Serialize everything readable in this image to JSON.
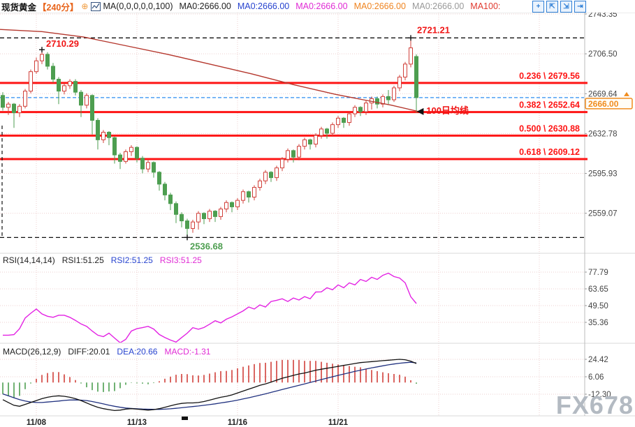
{
  "toolbar": {
    "symbol": "现货黄金",
    "period": "【240分】",
    "ma_settings": "MA(0,0,0,0,0,100)",
    "ma_values": [
      {
        "label": "MA0:2666.00",
        "color": "#222222"
      },
      {
        "label": "MA0:2666.00",
        "color": "#2743cf"
      },
      {
        "label": "MA0:2666.00",
        "color": "#e02ad4"
      },
      {
        "label": "MA0:2666.00",
        "color": "#ef8420"
      },
      {
        "label": "MA0:2666.00",
        "color": "#999999"
      },
      {
        "label": "MA100:",
        "color": "#e03a2f"
      }
    ],
    "icons": [
      {
        "name": "crosshair-move-icon",
        "glyph": "+"
      },
      {
        "name": "zoom-area-icon",
        "glyph": "⇱"
      },
      {
        "name": "zoom-reset-icon",
        "glyph": "⇲"
      },
      {
        "name": "pan-right-icon",
        "glyph": "⇥"
      }
    ]
  },
  "rsi_header": {
    "title": "RSI(14,14,14)",
    "rsi1": "RSI1:51.25",
    "rsi2": "RSI2:51.25",
    "rsi3": "RSI3:51.25"
  },
  "macd_header": {
    "title": "MACD(26,12,9)",
    "diff": "DIFF:20.01",
    "dea": "DEA:20.66",
    "macd": "MACD:-1.31"
  },
  "watermark": "FX678",
  "current_price": {
    "value": "2666.00",
    "direction": "up"
  },
  "colors": {
    "up": "#d1403a",
    "down": "#4d9e50",
    "fib": "#fe1515",
    "ma100": "#b5382e",
    "rsi_line": "#e322e3",
    "diff_line": "#111111",
    "dea_line": "#20317f",
    "current_line": "#2e8ef0",
    "badge": "#f08c1e",
    "grid": "#eecfcf",
    "label_red": "#f01515",
    "label_green": "#4d9e50"
  },
  "chart_data": {
    "type": "candlestick",
    "symbol": "现货黄金",
    "interval": "240分",
    "price_axis_ticks": [
      2743.35,
      2706.5,
      2669.64,
      2632.78,
      2595.93,
      2559.07
    ],
    "x_labels": [
      {
        "label": "11/08",
        "bar": 6
      },
      {
        "label": "11/13",
        "bar": 24
      },
      {
        "label": "11/16",
        "bar": 42
      },
      {
        "label": "11/21",
        "bar": 60
      }
    ],
    "extra_grid_bars": [
      78,
      96
    ],
    "fib_levels": [
      {
        "ratio": "0.236",
        "price": 2679.56
      },
      {
        "ratio": "0.382",
        "price": 2652.64
      },
      {
        "ratio": "0.500",
        "price": 2630.88
      },
      {
        "ratio": "0.618",
        "price": 2609.12
      }
    ],
    "annotations": {
      "high1": {
        "text": "2710.29",
        "bar": 7,
        "price": 2710.29
      },
      "high2": {
        "text": "2721.21",
        "bar": 73,
        "price": 2721.21
      },
      "low": {
        "text": "2536.68",
        "bar": 33,
        "price": 2536.68
      },
      "ma_line_label": "100日均线",
      "current_price_line": 2666.0
    },
    "candles": [
      [
        2668,
        2671,
        2654,
        2657
      ],
      [
        2657,
        2662,
        2650,
        2660
      ],
      [
        2660,
        2661,
        2638,
        2652
      ],
      [
        2652,
        2660,
        2648,
        2658
      ],
      [
        2658,
        2674,
        2656,
        2672
      ],
      [
        2672,
        2692,
        2670,
        2690
      ],
      [
        2690,
        2703,
        2688,
        2700
      ],
      [
        2700,
        2710.29,
        2697,
        2706
      ],
      [
        2706,
        2708,
        2692,
        2695
      ],
      [
        2695,
        2698,
        2680,
        2683
      ],
      [
        2683,
        2685,
        2660,
        2672
      ],
      [
        2672,
        2679,
        2669,
        2677
      ],
      [
        2677,
        2683,
        2674,
        2681
      ],
      [
        2681,
        2683,
        2668,
        2671
      ],
      [
        2671,
        2673,
        2648,
        2659
      ],
      [
        2659,
        2670,
        2656,
        2668
      ],
      [
        2668,
        2669,
        2632,
        2645
      ],
      [
        2645,
        2647,
        2618,
        2627
      ],
      [
        2627,
        2636,
        2624,
        2634
      ],
      [
        2634,
        2635,
        2622,
        2629
      ],
      [
        2629,
        2630,
        2605,
        2613
      ],
      [
        2613,
        2615,
        2600,
        2607
      ],
      [
        2607,
        2618,
        2605,
        2616
      ],
      [
        2616,
        2622,
        2612,
        2620
      ],
      [
        2620,
        2621,
        2606,
        2610
      ],
      [
        2610,
        2612,
        2596,
        2600
      ],
      [
        2600,
        2608,
        2597,
        2606
      ],
      [
        2606,
        2607,
        2592,
        2597
      ],
      [
        2597,
        2598,
        2580,
        2586
      ],
      [
        2586,
        2588,
        2571,
        2576
      ],
      [
        2576,
        2578,
        2562,
        2568
      ],
      [
        2568,
        2570,
        2550,
        2558
      ],
      [
        2558,
        2560,
        2546,
        2552
      ],
      [
        2552,
        2554,
        2536.68,
        2545
      ],
      [
        2545,
        2553,
        2541,
        2551
      ],
      [
        2551,
        2561,
        2544,
        2559
      ],
      [
        2559,
        2560,
        2549,
        2554
      ],
      [
        2554,
        2563,
        2551,
        2561
      ],
      [
        2561,
        2562,
        2551,
        2556
      ],
      [
        2556,
        2565,
        2553,
        2563
      ],
      [
        2563,
        2571,
        2560,
        2569
      ],
      [
        2569,
        2570,
        2560,
        2565
      ],
      [
        2565,
        2573,
        2562,
        2571
      ],
      [
        2571,
        2581,
        2568,
        2579
      ],
      [
        2579,
        2580,
        2569,
        2574
      ],
      [
        2574,
        2585,
        2571,
        2583
      ],
      [
        2583,
        2591,
        2580,
        2589
      ],
      [
        2589,
        2599,
        2586,
        2597
      ],
      [
        2597,
        2598,
        2588,
        2592
      ],
      [
        2592,
        2603,
        2589,
        2601
      ],
      [
        2601,
        2611,
        2598,
        2609
      ],
      [
        2609,
        2619,
        2606,
        2617
      ],
      [
        2617,
        2618,
        2606,
        2611
      ],
      [
        2611,
        2623,
        2608,
        2621
      ],
      [
        2621,
        2629,
        2618,
        2627
      ],
      [
        2627,
        2628,
        2618,
        2623
      ],
      [
        2623,
        2633,
        2620,
        2631
      ],
      [
        2631,
        2639,
        2628,
        2637
      ],
      [
        2637,
        2638,
        2628,
        2633
      ],
      [
        2633,
        2643,
        2630,
        2641
      ],
      [
        2641,
        2649,
        2638,
        2647
      ],
      [
        2647,
        2648,
        2638,
        2643
      ],
      [
        2643,
        2653,
        2640,
        2651
      ],
      [
        2651,
        2659,
        2648,
        2657
      ],
      [
        2657,
        2658,
        2649,
        2653
      ],
      [
        2653,
        2663,
        2650,
        2661
      ],
      [
        2661,
        2667,
        2655,
        2665
      ],
      [
        2665,
        2667,
        2656,
        2660
      ],
      [
        2660,
        2669,
        2657,
        2667
      ],
      [
        2667,
        2673,
        2660,
        2664
      ],
      [
        2664,
        2677,
        2662,
        2675
      ],
      [
        2675,
        2687,
        2672,
        2685
      ],
      [
        2685,
        2699,
        2682,
        2697
      ],
      [
        2697,
        2721.21,
        2694,
        2712
      ],
      [
        2704,
        2706,
        2652,
        2666
      ]
    ],
    "ma100": [
      [
        0,
        2729
      ],
      [
        60,
        2727
      ],
      [
        120,
        2722
      ],
      [
        180,
        2714
      ],
      [
        240,
        2706
      ],
      [
        300,
        2697
      ],
      [
        360,
        2688
      ],
      [
        420,
        2678
      ],
      [
        480,
        2669
      ],
      [
        520,
        2664
      ],
      [
        560,
        2659
      ],
      [
        600,
        2653
      ]
    ],
    "rsi": {
      "ticks": [
        77.79,
        63.65,
        49.5,
        35.36
      ],
      "values": [
        24.5,
        24.5,
        25,
        30,
        39,
        43,
        46.6,
        42.5,
        40.5,
        39.6,
        41.4,
        41.4,
        39.6,
        37,
        34,
        32,
        28,
        24.5,
        23.3,
        26.2,
        22.1,
        18.1,
        21,
        28,
        30,
        30.9,
        32,
        29.7,
        25.1,
        22.5,
        20.4,
        18.7,
        22.5,
        26.2,
        30.9,
        29.5,
        31,
        33.8,
        36.7,
        34.9,
        38,
        40,
        42.5,
        45,
        48.3,
        46.6,
        50.1,
        48.3,
        53,
        54,
        55.3,
        53,
        55.9,
        54.2,
        57.1,
        55.3,
        61,
        61.1,
        64.6,
        62.9,
        67,
        64.6,
        68.7,
        67,
        71.6,
        69.9,
        73.4,
        71.6,
        75.1,
        76.9,
        74,
        72.8,
        68.7,
        57,
        51.25
      ]
    },
    "macd": {
      "ticks": [
        24.42,
        6.06,
        -12.3
      ],
      "diff": [
        -18,
        -21,
        -24,
        -25,
        -23,
        -21,
        -19,
        -17,
        -15.5,
        -14.5,
        -14,
        -14.5,
        -15.5,
        -17,
        -19,
        -21.5,
        -24,
        -26,
        -27.5,
        -28.5,
        -29.5,
        -29,
        -28,
        -27.5,
        -28,
        -28.5,
        -29,
        -28.5,
        -27.5,
        -26,
        -24.5,
        -23,
        -22,
        -21.5,
        -21.5,
        -21,
        -20,
        -18.5,
        -17,
        -15.5,
        -14.5,
        -13,
        -11,
        -9,
        -7,
        -5,
        -3,
        -1.5,
        0.5,
        2.5,
        4.5,
        6,
        7.5,
        9,
        10,
        11.5,
        13,
        14,
        15,
        16,
        17,
        18,
        19,
        20,
        21,
        21.5,
        22,
        22.5,
        23,
        23.5,
        24,
        24.4,
        24,
        22.5,
        20.01
      ],
      "dea": [
        -12,
        -14,
        -16,
        -18,
        -19.5,
        -20.5,
        -21,
        -21,
        -20.5,
        -20,
        -19.5,
        -18.8,
        -18.4,
        -18.3,
        -18.5,
        -19,
        -20,
        -21.2,
        -22.5,
        -23.8,
        -25,
        -26,
        -26.8,
        -27.3,
        -27.6,
        -27.9,
        -28.1,
        -28.2,
        -28.2,
        -28,
        -27.6,
        -27.1,
        -26.5,
        -25.9,
        -25.3,
        -24.7,
        -24,
        -23.2,
        -22.4,
        -21.5,
        -20.6,
        -19.6,
        -18.5,
        -17.3,
        -16,
        -14.7,
        -13.3,
        -11.9,
        -10.4,
        -8.9,
        -7.4,
        -5.9,
        -4.4,
        -2.9,
        -1.4,
        0.1,
        1.6,
        3.1,
        4.6,
        6.1,
        7.5,
        8.9,
        10.3,
        11.7,
        13,
        14.2,
        15.4,
        16.5,
        17.6,
        18.6,
        19.5,
        20.3,
        20.9,
        21.3,
        20.66
      ]
    }
  }
}
